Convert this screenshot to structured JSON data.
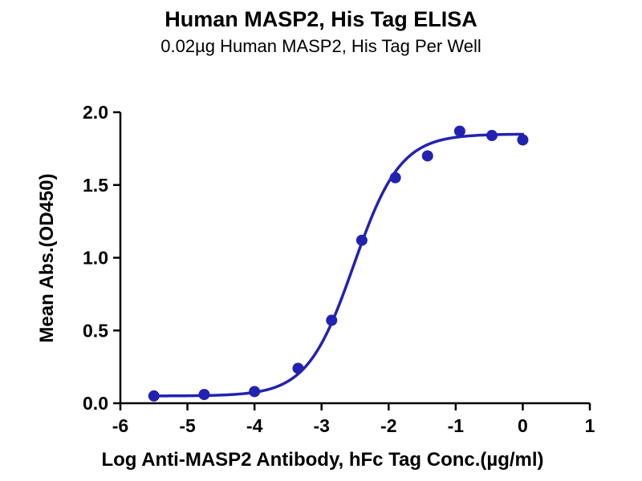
{
  "chart_data": {
    "type": "scatter",
    "title": "Human MASP2, His Tag ELISA",
    "subtitle": "0.02µg Human MASP2, His Tag Per Well",
    "xlabel": "Log Anti-MASP2 Antibody, hFc Tag Conc.(µg/ml)",
    "ylabel": "Mean Abs.(OD450)",
    "xlim": [
      -6,
      1
    ],
    "ylim": [
      0,
      2
    ],
    "x_ticks": [
      -6,
      -5,
      -4,
      -3,
      -2,
      -1,
      0,
      1
    ],
    "x_tick_labels": [
      "-6",
      "-5",
      "-4",
      "-3",
      "-2",
      "-1",
      "0",
      "1"
    ],
    "y_ticks": [
      0,
      0.5,
      1,
      1.5,
      2
    ],
    "y_tick_labels": [
      "0.0",
      "0.5",
      "1.0",
      "1.5",
      "2.0"
    ],
    "grid": false,
    "legend_position": "none",
    "colors": {
      "points": "#2222b2",
      "curve": "#2222b2",
      "axes": "#000000",
      "text": "#000000"
    },
    "series": [
      {
        "marker": "circle",
        "x": [
          -5.5,
          -4.75,
          -4.0,
          -3.35,
          -2.85,
          -2.4,
          -1.9,
          -1.42,
          -0.94,
          -0.46,
          0
        ],
        "y": [
          0.05,
          0.06,
          0.08,
          0.24,
          0.57,
          1.12,
          1.55,
          1.7,
          1.87,
          1.84,
          1.81
        ]
      }
    ],
    "fit_curve": {
      "model": "4PL sigmoidal",
      "bottom": 0.05,
      "top": 1.85,
      "log_ec50": -2.52,
      "hill_slope": 1.25,
      "x_start": -5.5,
      "x_end": 0
    }
  }
}
